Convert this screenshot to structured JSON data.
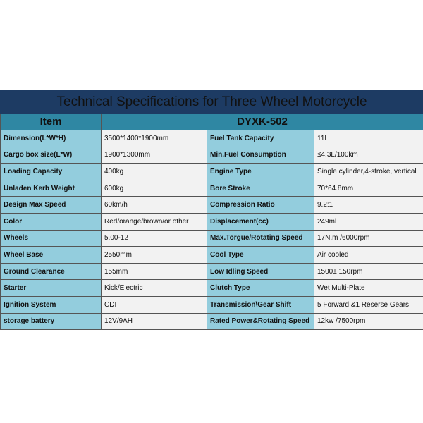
{
  "title": "Technical Specifications for Three Wheel Motorcycle",
  "header": {
    "item": "Item",
    "model": "DYXK-502"
  },
  "colors": {
    "title_bg": "#1d3b63",
    "title_text": "#f5c518",
    "header_bg": "#2f87a3",
    "label_bg": "#93cddd",
    "value_bg": "#f2f2f2"
  },
  "rows": [
    {
      "l1": "Dimension(L*W*H)",
      "v1": "3500*1400*1900mm",
      "l2": "Fuel Tank Capacity",
      "v2": "11L"
    },
    {
      "l1": "Cargo box size(L*W)",
      "v1": "1900*1300mm",
      "l2": "Min.Fuel Consumption",
      "v2": "≤4.3L/100km"
    },
    {
      "l1": "Loading Capacity",
      "v1": "400kg",
      "l2": "Engine Type",
      "v2": "Single cylinder,4-stroke, vertical"
    },
    {
      "l1": "Unladen Kerb Weight",
      "v1": "600kg",
      "l2": "Bore Stroke",
      "v2": "70*64.8mm"
    },
    {
      "l1": "Design Max Speed",
      "v1": "60km/h",
      "l2": "Compression Ratio",
      "v2": "9.2:1"
    },
    {
      "l1": "Color",
      "v1": "Red/orange/brown/or other",
      "l2": "Displacement(cc)",
      "v2": "249ml"
    },
    {
      "l1": "Wheels",
      "v1": "5.00-12",
      "l2": "Max.Torgue/Rotating Speed",
      "v2": "17N.m /6000rpm"
    },
    {
      "l1": "Wheel Base",
      "v1": "2550mm",
      "l2": "Cool Type",
      "v2": "Air cooled"
    },
    {
      "l1": "Ground Clearance",
      "v1": "155mm",
      "l2": "Low Idling Speed",
      "v2": "1500± 150rpm"
    },
    {
      "l1": "Starter",
      "v1": "Kick/Electric",
      "l2": "Clutch Type",
      "v2": "Wet Multi-Plate"
    },
    {
      "l1": "Ignition System",
      "v1": "CDI",
      "l2": "Transmission\\Gear Shift",
      "v2": "5 Forward &1 Reserse Gears"
    },
    {
      "l1": "storage battery",
      "v1": "12V/9AH",
      "l2": "Rated Power&Rotating Speed",
      "v2": "12kw /7500rpm"
    }
  ]
}
